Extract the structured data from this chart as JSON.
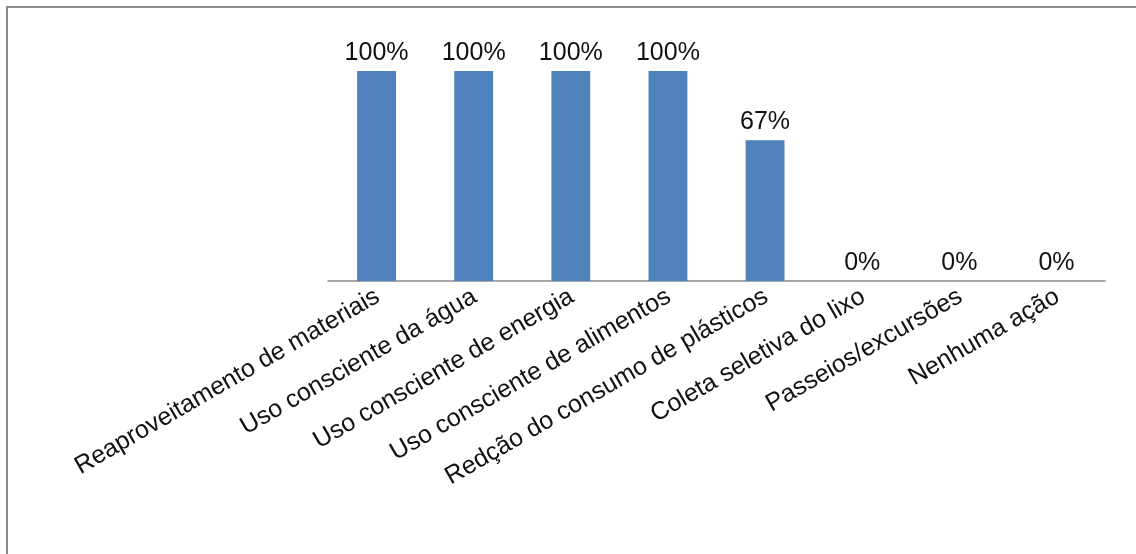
{
  "chart_data": {
    "type": "bar",
    "categories": [
      "Reaproveitamento de materiais",
      "Uso consciente da água",
      "Uso consciente de energia",
      "Uso consciente de alimentos",
      "Redção do consumo de plásticos",
      "Coleta seletiva do lixo",
      "Passeios/excursões",
      "Nenhuma ação"
    ],
    "values": [
      100,
      100,
      100,
      100,
      67,
      0,
      0,
      0
    ],
    "value_labels": [
      "100%",
      "100%",
      "100%",
      "100%",
      "67%",
      "0%",
      "0%",
      "0%"
    ],
    "color": "#4f81bd"
  }
}
